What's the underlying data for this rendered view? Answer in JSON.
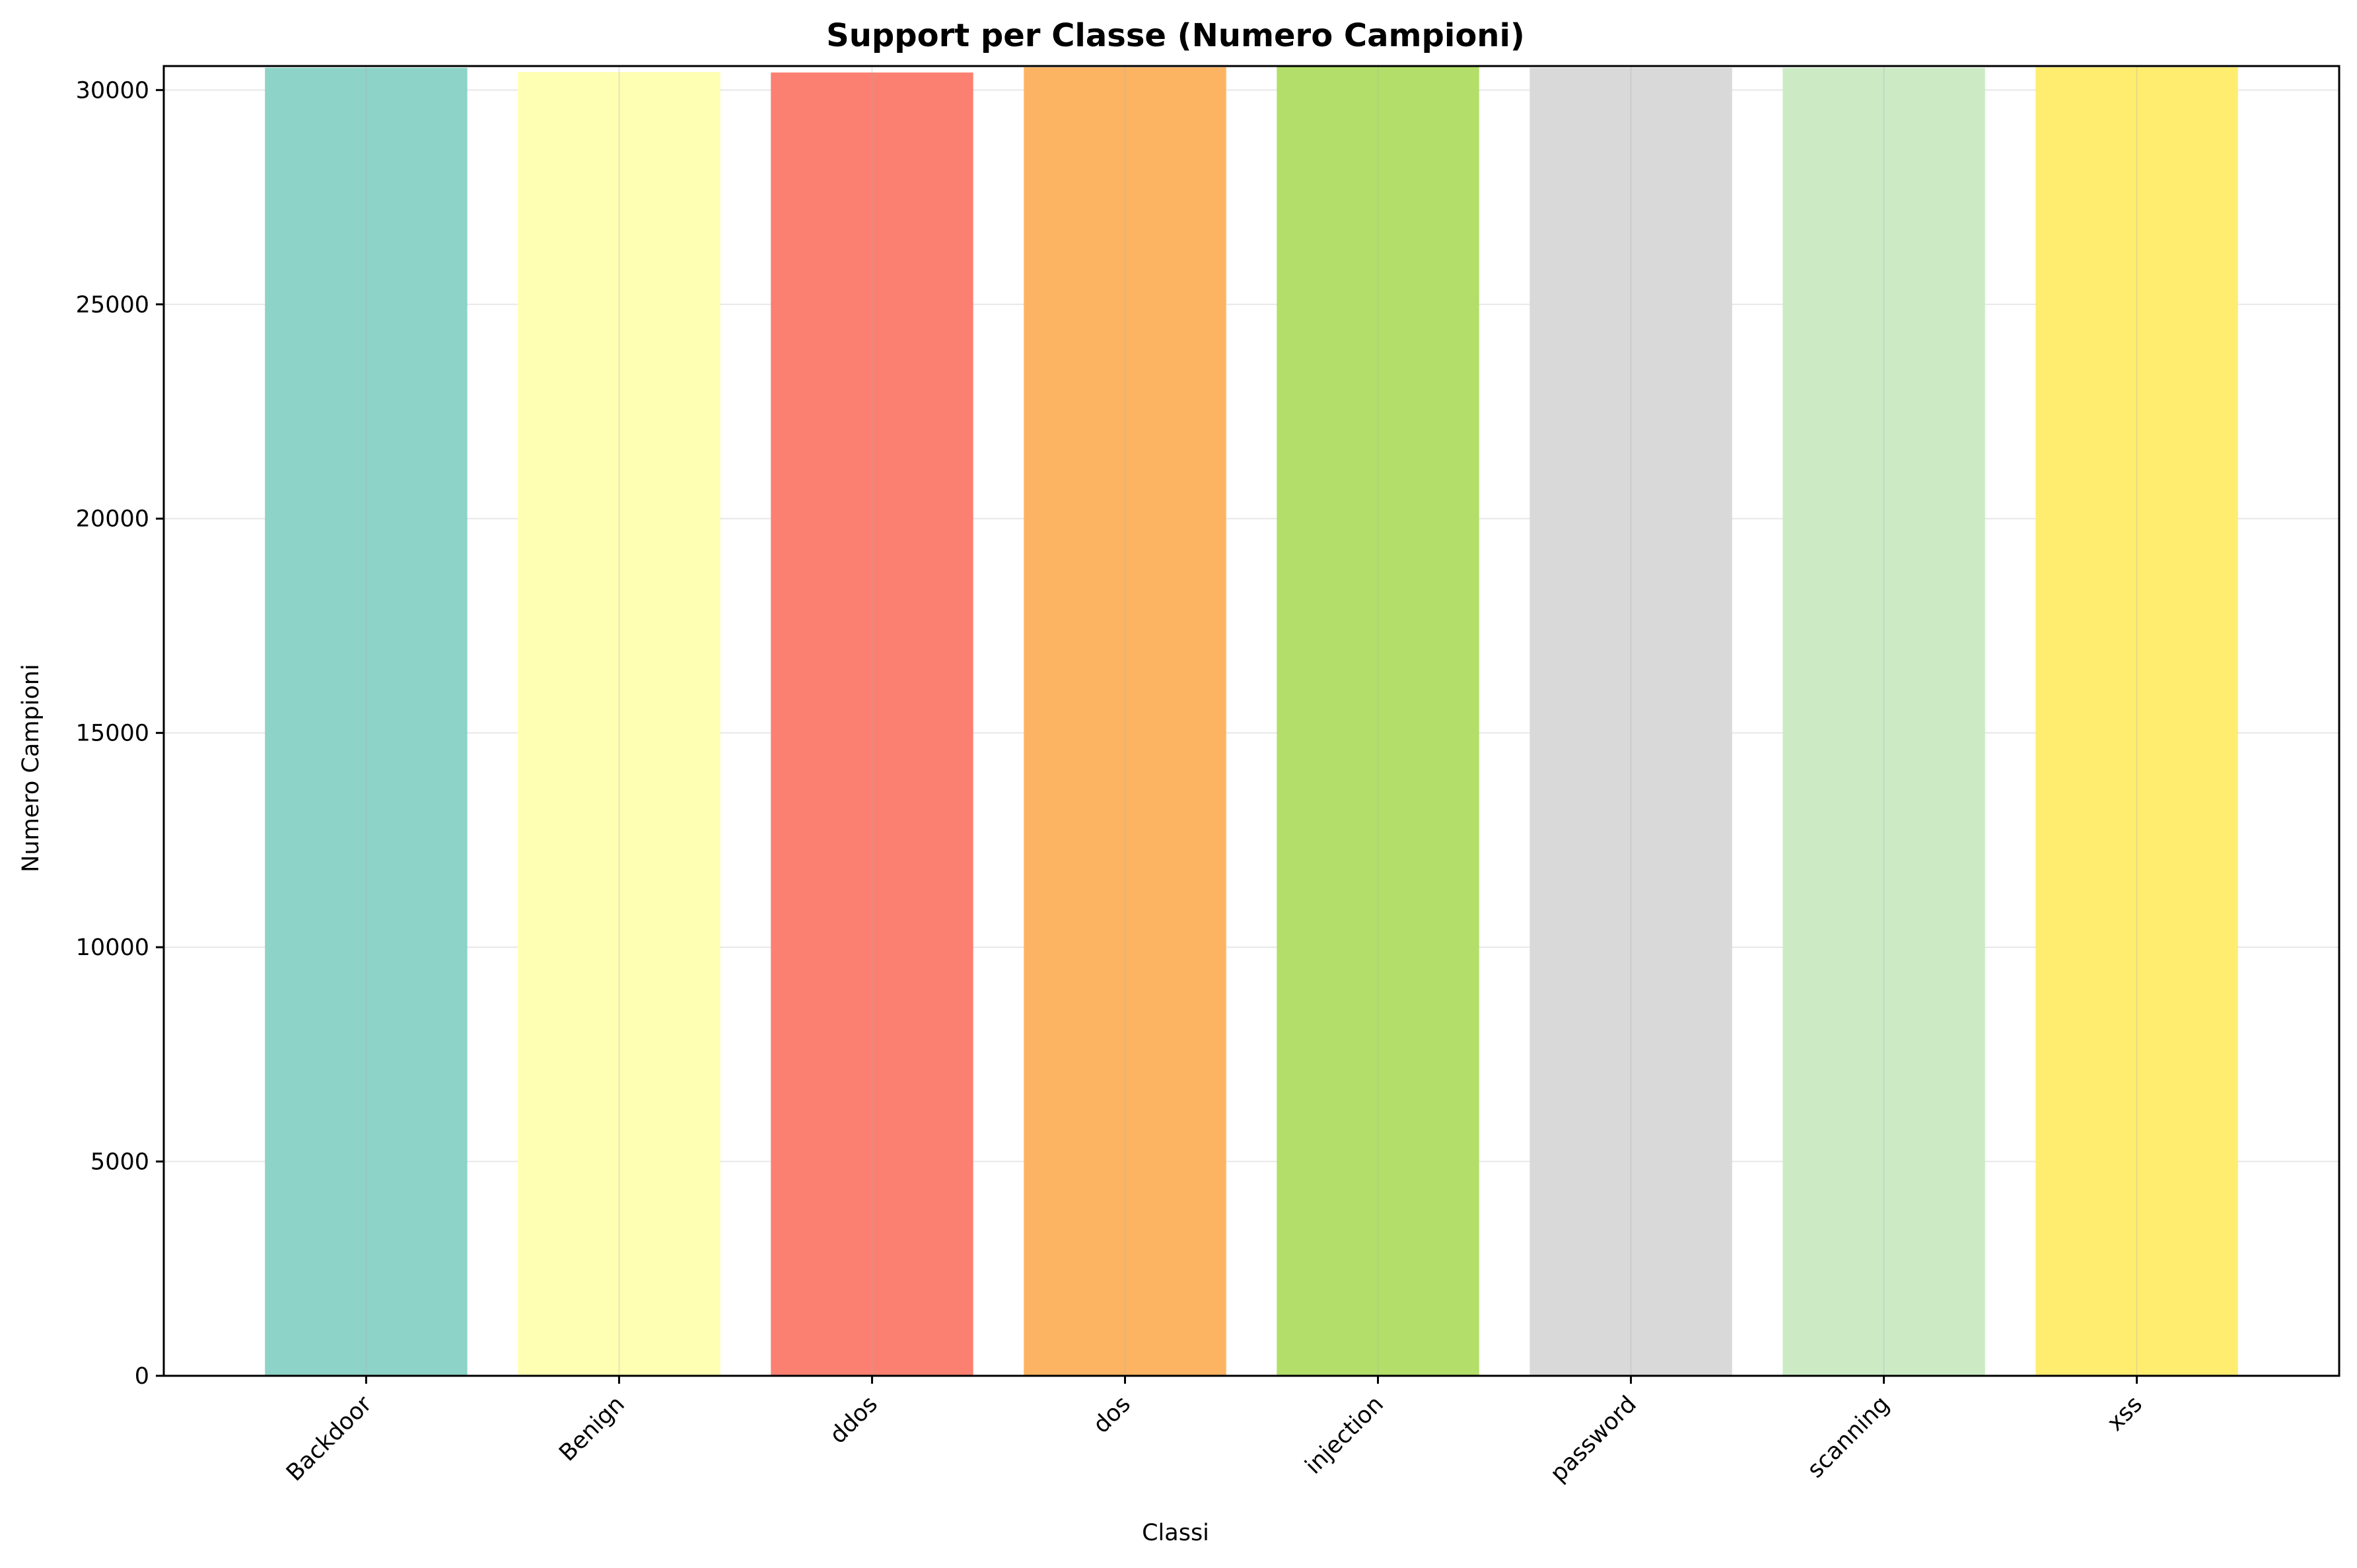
{
  "chart_data": {
    "type": "bar",
    "title": "Support per Classe (Numero Campioni)",
    "xlabel": "Classi",
    "ylabel": "Numero Campioni",
    "categories": [
      "Backdoor",
      "Benign",
      "ddos",
      "dos",
      "injection",
      "password",
      "scanning",
      "xss"
    ],
    "values": [
      30520,
      30420,
      30410,
      30530,
      30560,
      30520,
      30520,
      30530
    ],
    "colors": [
      "#8dd3c7",
      "#ffffb3",
      "#fb8072",
      "#fdb462",
      "#b3de69",
      "#d9d9d9",
      "#ccebc5",
      "#ffed6f"
    ],
    "ylim": [
      0,
      30560
    ],
    "yticks": [
      0,
      5000,
      10000,
      15000,
      20000,
      25000,
      30000
    ],
    "grid": true,
    "legend": "none"
  }
}
